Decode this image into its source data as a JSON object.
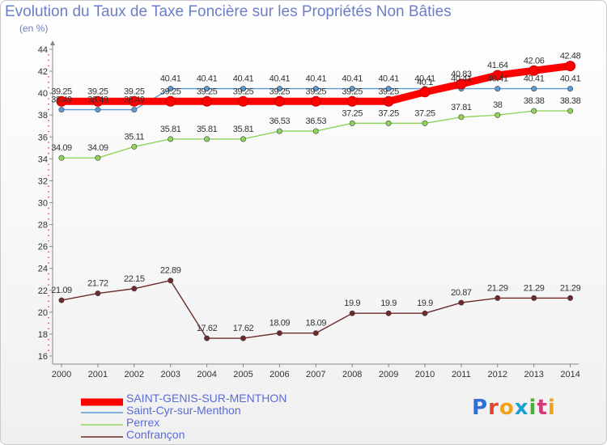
{
  "chart_data": {
    "type": "line",
    "title": "Evolution du Taux de Taxe Foncière sur les Propriétés Non Bâties",
    "ylabel": "(en %)",
    "xlabel": "",
    "x": [
      "2000",
      "2001",
      "2002",
      "2003",
      "2004",
      "2005",
      "2006",
      "2007",
      "2008",
      "2009",
      "2010",
      "2011",
      "2012",
      "2013",
      "2014"
    ],
    "ylim": [
      16,
      44
    ],
    "yticks": [
      "16",
      "18",
      "20",
      "22",
      "24",
      "26",
      "28",
      "30",
      "32",
      "34",
      "36",
      "38",
      "40",
      "42",
      "44"
    ],
    "grid": false,
    "legend_position": "bottom-left",
    "series": [
      {
        "name": "SAINT-GENIS-SUR-MENTHON",
        "color": "#ff0000",
        "values": [
          39.25,
          39.25,
          39.25,
          39.25,
          39.25,
          39.25,
          39.25,
          39.25,
          39.25,
          39.25,
          40.1,
          40.83,
          41.64,
          42.06,
          42.48
        ],
        "labels": [
          "39.25",
          "39.25",
          "39.25",
          "39.25",
          "39.25",
          "39.25",
          "39.25",
          "39.25",
          "39.25",
          "39.25",
          "40.1",
          "40.83",
          "41.64",
          "42.06",
          "42.48"
        ]
      },
      {
        "name": "Saint-Cyr-sur-Menthon",
        "color": "#5b9bd5",
        "values": [
          38.49,
          38.49,
          38.49,
          40.41,
          40.41,
          40.41,
          40.41,
          40.41,
          40.41,
          40.41,
          40.41,
          40.41,
          40.41,
          40.41,
          40.41
        ],
        "labels": [
          "38.49",
          "38.49",
          "38.49",
          "40.41",
          "40.41",
          "40.41",
          "40.41",
          "40.41",
          "40.41",
          "40.41",
          "40.41",
          "40.41",
          "40.41",
          "40.41",
          "40.41"
        ]
      },
      {
        "name": "Perrex",
        "color": "#8fd45a",
        "values": [
          34.09,
          34.09,
          35.11,
          35.81,
          35.81,
          35.81,
          36.53,
          36.53,
          37.25,
          37.25,
          37.25,
          37.81,
          38,
          38.38,
          38.38
        ],
        "labels": [
          "34.09",
          "34.09",
          "35.11",
          "35.81",
          "35.81",
          "35.81",
          "36.53",
          "36.53",
          "37.25",
          "37.25",
          "37.25",
          "37.81",
          "38",
          "38.38",
          "38.38"
        ]
      },
      {
        "name": "Confrançon",
        "color": "#6e2a2a",
        "values": [
          21.09,
          21.72,
          22.15,
          22.89,
          17.62,
          17.62,
          18.09,
          18.09,
          19.9,
          19.9,
          19.9,
          20.87,
          21.29,
          21.29,
          21.29
        ],
        "labels": [
          "21.09",
          "21.72",
          "22.15",
          "22.89",
          "17.62",
          "17.62",
          "18.09",
          "18.09",
          "19.9",
          "19.9",
          "19.9",
          "20.87",
          "21.29",
          "21.29",
          "21.29"
        ]
      }
    ]
  },
  "logo": {
    "letters": [
      "P",
      "r",
      "o",
      "x",
      "i",
      "t",
      "i"
    ],
    "colors": [
      "#2f6fd6",
      "#e2452c",
      "#f0a21b",
      "#1aa1d8",
      "#4cae3a",
      "#d23a7a",
      "#f0a21b"
    ]
  }
}
